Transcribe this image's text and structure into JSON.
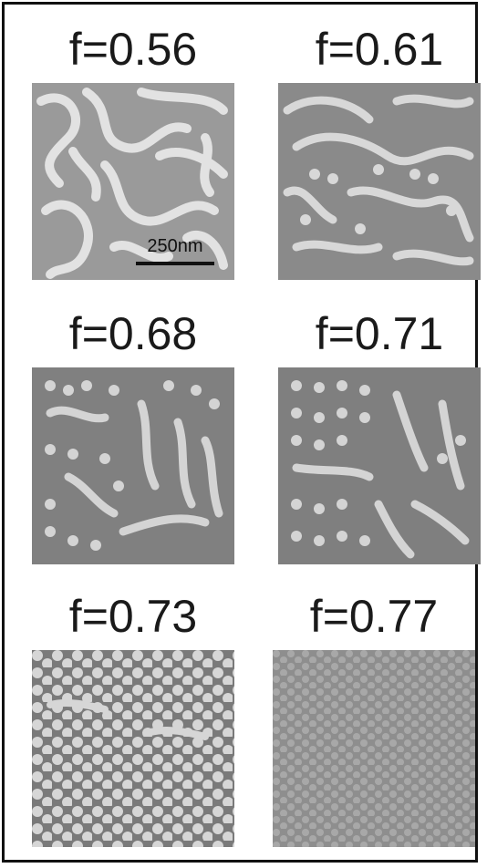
{
  "panels": [
    {
      "label": "f=0.56"
    },
    {
      "label": "f=0.61"
    },
    {
      "label": "f=0.68"
    },
    {
      "label": "f=0.71"
    },
    {
      "label": "f=0.73"
    },
    {
      "label": "f=0.77"
    }
  ],
  "scale_bar": {
    "label": "250nm"
  }
}
